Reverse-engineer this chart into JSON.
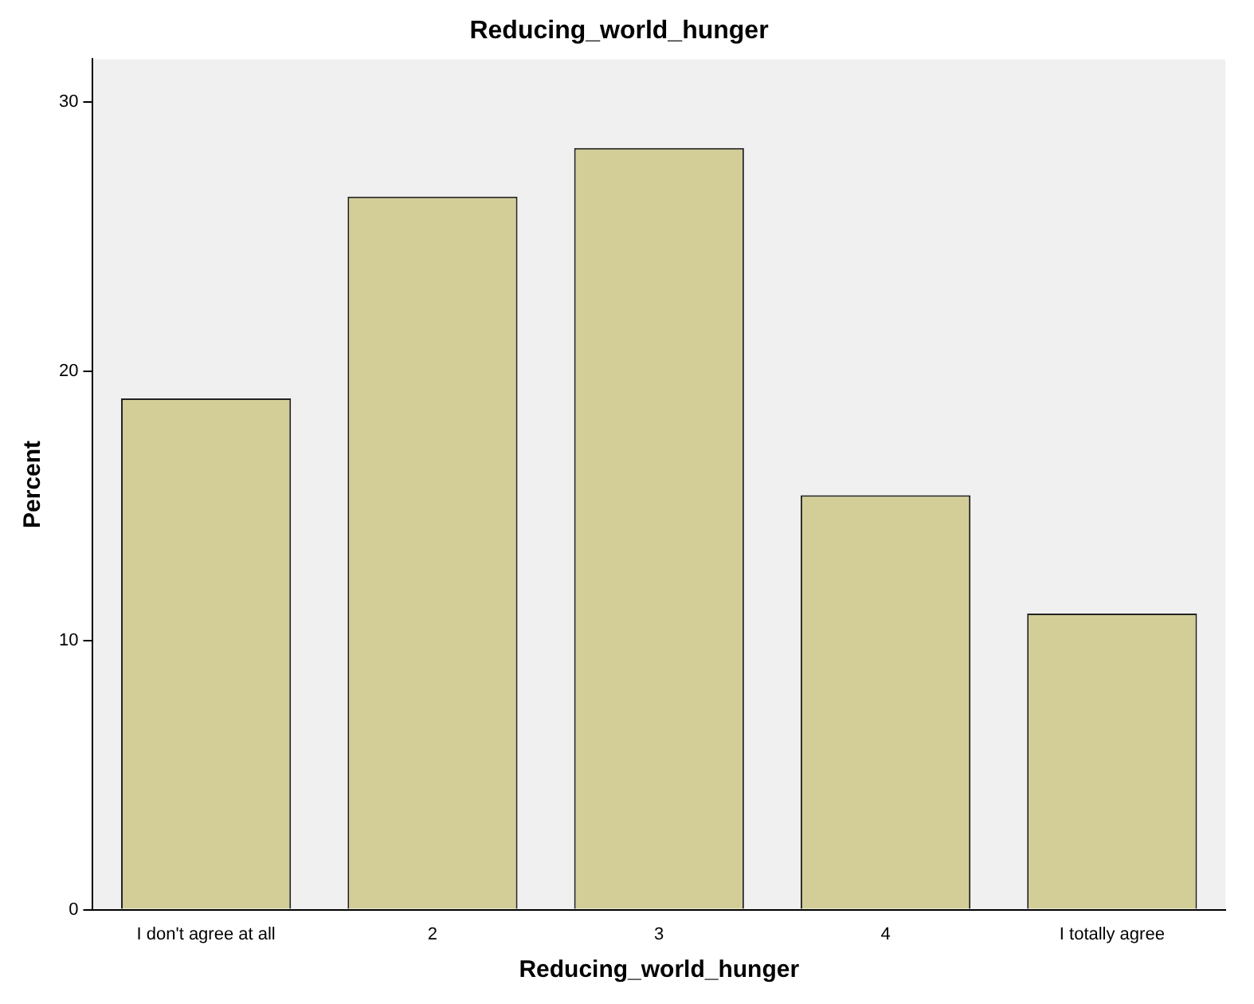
{
  "chart_data": {
    "type": "bar",
    "title": "Reducing_world_hunger",
    "xlabel": "Reducing_world_hunger",
    "ylabel": "Percent",
    "categories": [
      "I don't agree at all",
      "2",
      "3",
      "4",
      "I totally agree"
    ],
    "values": [
      19.0,
      26.5,
      28.3,
      15.4,
      11.0
    ],
    "color": "#d3ce97",
    "ylim": [
      0,
      31.6
    ],
    "yticks": [
      0,
      10,
      20,
      30
    ],
    "grid": false,
    "legend": false
  }
}
